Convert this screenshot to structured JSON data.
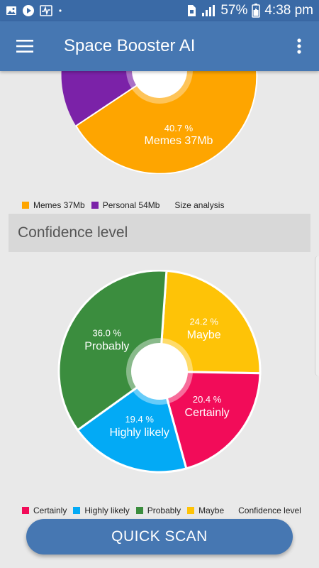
{
  "status_bar": {
    "battery": "57%",
    "time": "4:38 pm",
    "left_icons": [
      "gallery-icon",
      "play-icon",
      "activity-icon",
      "dot-icon"
    ],
    "right_icons": [
      "sim-icon",
      "signal-icon",
      "battery-icon"
    ]
  },
  "app_bar": {
    "title": "Space Booster AI",
    "menu_icon": "hamburger-icon",
    "more_icon": "more-vert-icon"
  },
  "size_chart": {
    "legend": [
      {
        "label": "Memes 37Mb",
        "color": "#fea500"
      },
      {
        "label": "Personal 54Mb",
        "color": "#7b22a8"
      }
    ],
    "legend_title": "Size analysis",
    "visible_slice": {
      "pct": "40.7 %",
      "name": "Memes 37Mb"
    }
  },
  "section_title": "Confidence level",
  "confidence_chart": {
    "type": "pie",
    "legend_title": "Confidence level",
    "slices": [
      {
        "name": "Maybe",
        "pct_label": "24.2 %",
        "value": 24.2,
        "color": "#fec307"
      },
      {
        "name": "Certainly",
        "pct_label": "20.4 %",
        "value": 20.4,
        "color": "#f20c59"
      },
      {
        "name": "Highly likely",
        "pct_label": "19.4 %",
        "value": 19.4,
        "color": "#03aaf5"
      },
      {
        "name": "Probably",
        "pct_label": "36.0 %",
        "value": 36.0,
        "color": "#3b8d3e"
      }
    ],
    "legend": [
      {
        "label": "Certainly",
        "color": "#f20c59"
      },
      {
        "label": "Highly likely",
        "color": "#03aaf5"
      },
      {
        "label": "Probably",
        "color": "#3b8d3e"
      },
      {
        "label": "Maybe",
        "color": "#fec307"
      }
    ]
  },
  "chart_data": {
    "type": "pie",
    "categories": [
      "Maybe",
      "Certainly",
      "Highly likely",
      "Probably"
    ],
    "values": [
      24.2,
      20.4,
      19.4,
      36.0
    ]
  },
  "actions": {
    "quick_scan": "QUICK SCAN"
  }
}
